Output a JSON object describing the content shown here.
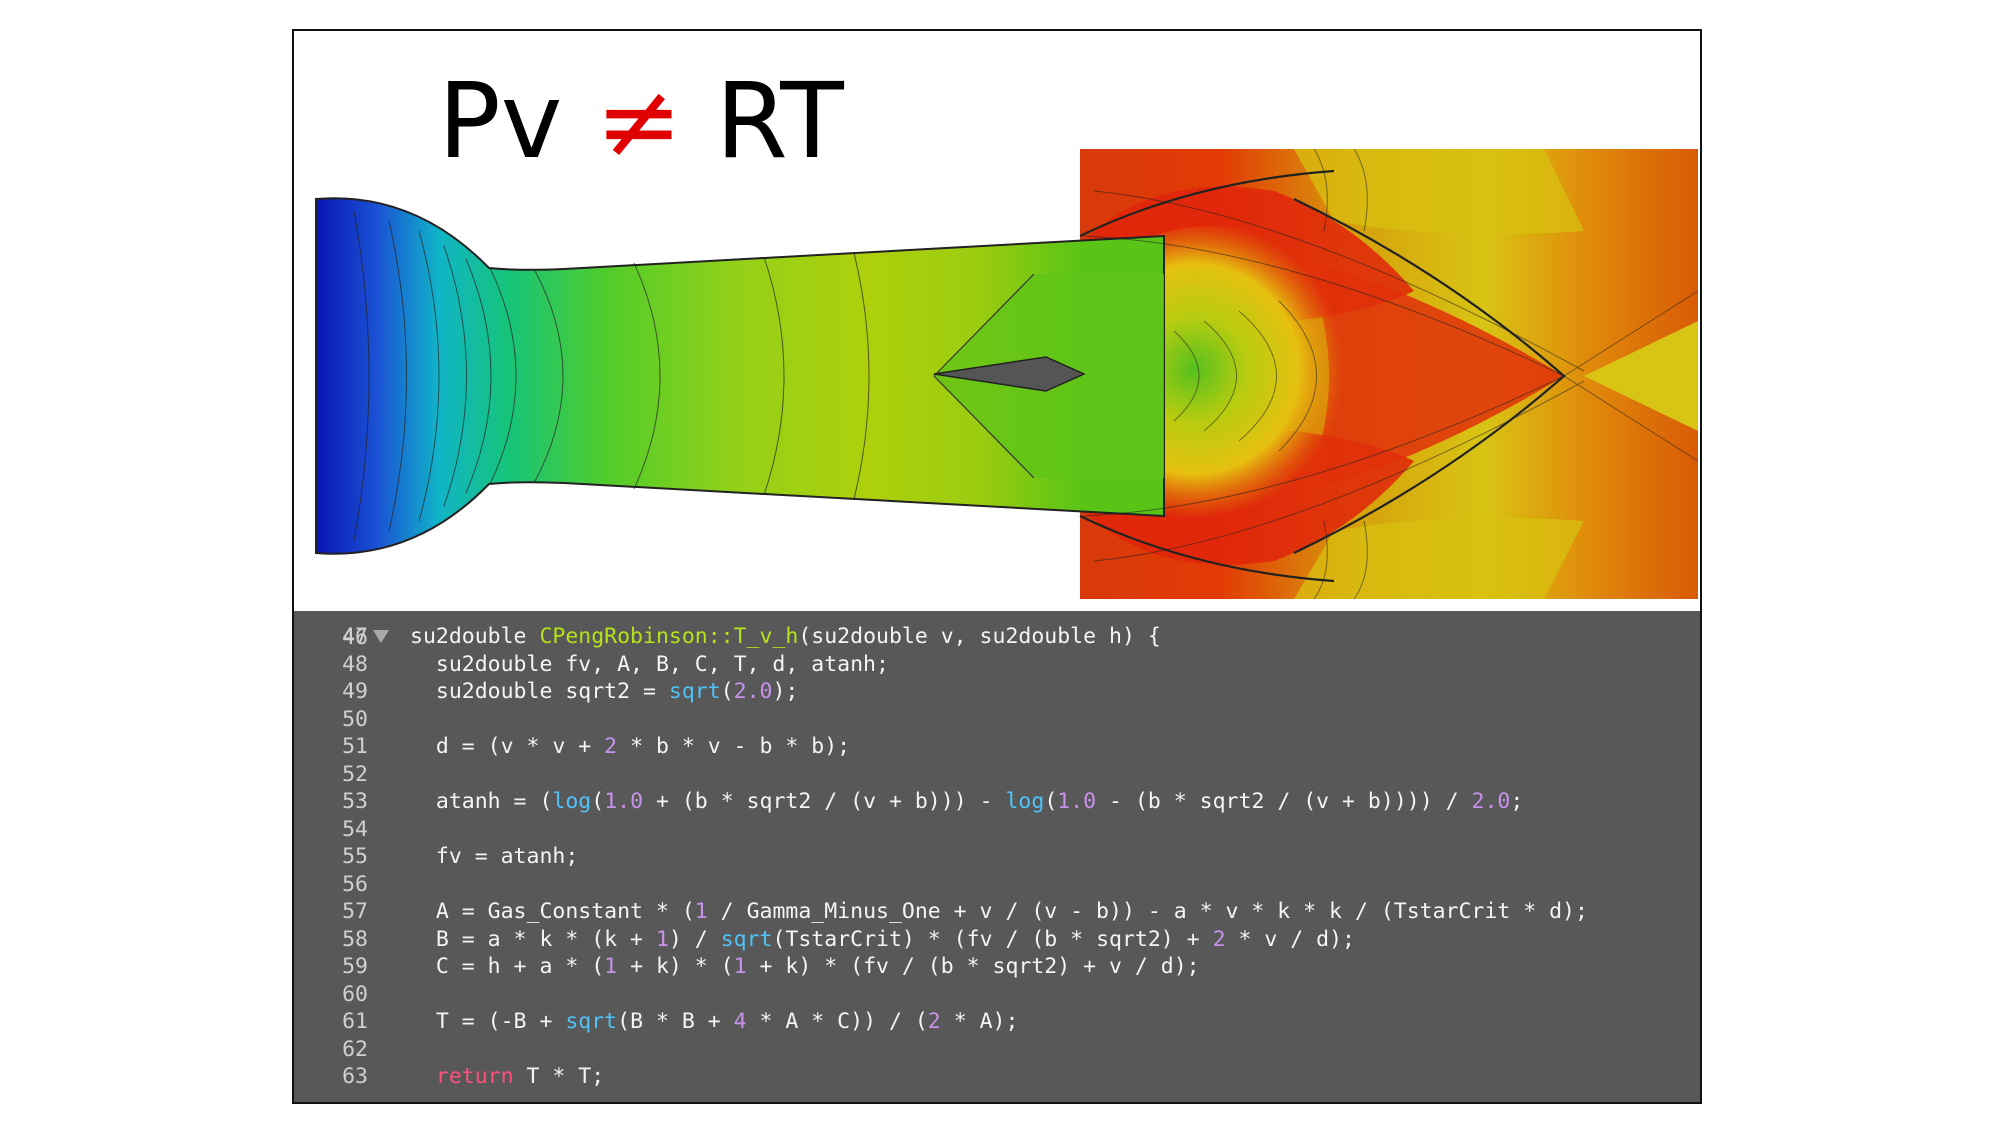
{
  "headline": {
    "left": "Pv",
    "symbol": "≠",
    "right": "RT"
  },
  "simulation": {
    "image_description": "nozzle flow field colored blue to red with shock patterns and embedded airfoil"
  },
  "editor": {
    "top_partial_line": "46",
    "lines": [
      {
        "n": "47",
        "folded_marker": true,
        "segments": [
          [
            "t",
            "su2double "
          ],
          [
            "fn",
            "CPengRobinson::T_v_h"
          ],
          [
            "t",
            "(su2double v, su2double h) {"
          ]
        ]
      },
      {
        "n": "48",
        "segments": [
          [
            "t",
            "  su2double fv, A, B, C, T, d, atanh;"
          ]
        ]
      },
      {
        "n": "49",
        "segments": [
          [
            "t",
            "  su2double sqrt2 = "
          ],
          [
            "bi",
            "sqrt"
          ],
          [
            "t",
            "("
          ],
          [
            "num",
            "2.0"
          ],
          [
            "t",
            ");"
          ]
        ]
      },
      {
        "n": "50",
        "segments": []
      },
      {
        "n": "51",
        "segments": [
          [
            "t",
            "  d = (v * v + "
          ],
          [
            "num",
            "2"
          ],
          [
            "t",
            " * b * v - b * b);"
          ]
        ]
      },
      {
        "n": "52",
        "segments": []
      },
      {
        "n": "53",
        "segments": [
          [
            "t",
            "  atanh = ("
          ],
          [
            "bi",
            "log"
          ],
          [
            "t",
            "("
          ],
          [
            "num",
            "1.0"
          ],
          [
            "t",
            " + (b * sqrt2 / (v + b))) - "
          ],
          [
            "bi",
            "log"
          ],
          [
            "t",
            "("
          ],
          [
            "num",
            "1.0"
          ],
          [
            "t",
            " - (b * sqrt2 / (v + b)))) / "
          ],
          [
            "num",
            "2.0"
          ],
          [
            "t",
            ";"
          ]
        ]
      },
      {
        "n": "54",
        "segments": []
      },
      {
        "n": "55",
        "segments": [
          [
            "t",
            "  fv = atanh;"
          ]
        ]
      },
      {
        "n": "56",
        "segments": []
      },
      {
        "n": "57",
        "segments": [
          [
            "t",
            "  A = Gas_Constant * ("
          ],
          [
            "num",
            "1"
          ],
          [
            "t",
            " / Gamma_Minus_One + v / (v - b)) - a * v * k * k / (TstarCrit * d);"
          ]
        ]
      },
      {
        "n": "58",
        "segments": [
          [
            "t",
            "  B = a * k * (k + "
          ],
          [
            "num",
            "1"
          ],
          [
            "t",
            ") / "
          ],
          [
            "bi",
            "sqrt"
          ],
          [
            "t",
            "(TstarCrit) * (fv / (b * sqrt2) + "
          ],
          [
            "num",
            "2"
          ],
          [
            "t",
            " * v / d);"
          ]
        ]
      },
      {
        "n": "59",
        "segments": [
          [
            "t",
            "  C = h + a * ("
          ],
          [
            "num",
            "1"
          ],
          [
            "t",
            " + k) * ("
          ],
          [
            "num",
            "1"
          ],
          [
            "t",
            " + k) * (fv / (b * sqrt2) + v / d);"
          ]
        ]
      },
      {
        "n": "60",
        "segments": []
      },
      {
        "n": "61",
        "segments": [
          [
            "t",
            "  T = (-B + "
          ],
          [
            "bi",
            "sqrt"
          ],
          [
            "t",
            "(B * B + "
          ],
          [
            "num",
            "4"
          ],
          [
            "t",
            " * A * C)) / ("
          ],
          [
            "num",
            "2"
          ],
          [
            "t",
            " * A);"
          ]
        ]
      },
      {
        "n": "62",
        "segments": []
      },
      {
        "n": "63",
        "segments": [
          [
            "t",
            "  "
          ],
          [
            "kw",
            "return"
          ],
          [
            "t",
            " T * T;"
          ]
        ]
      }
    ]
  }
}
